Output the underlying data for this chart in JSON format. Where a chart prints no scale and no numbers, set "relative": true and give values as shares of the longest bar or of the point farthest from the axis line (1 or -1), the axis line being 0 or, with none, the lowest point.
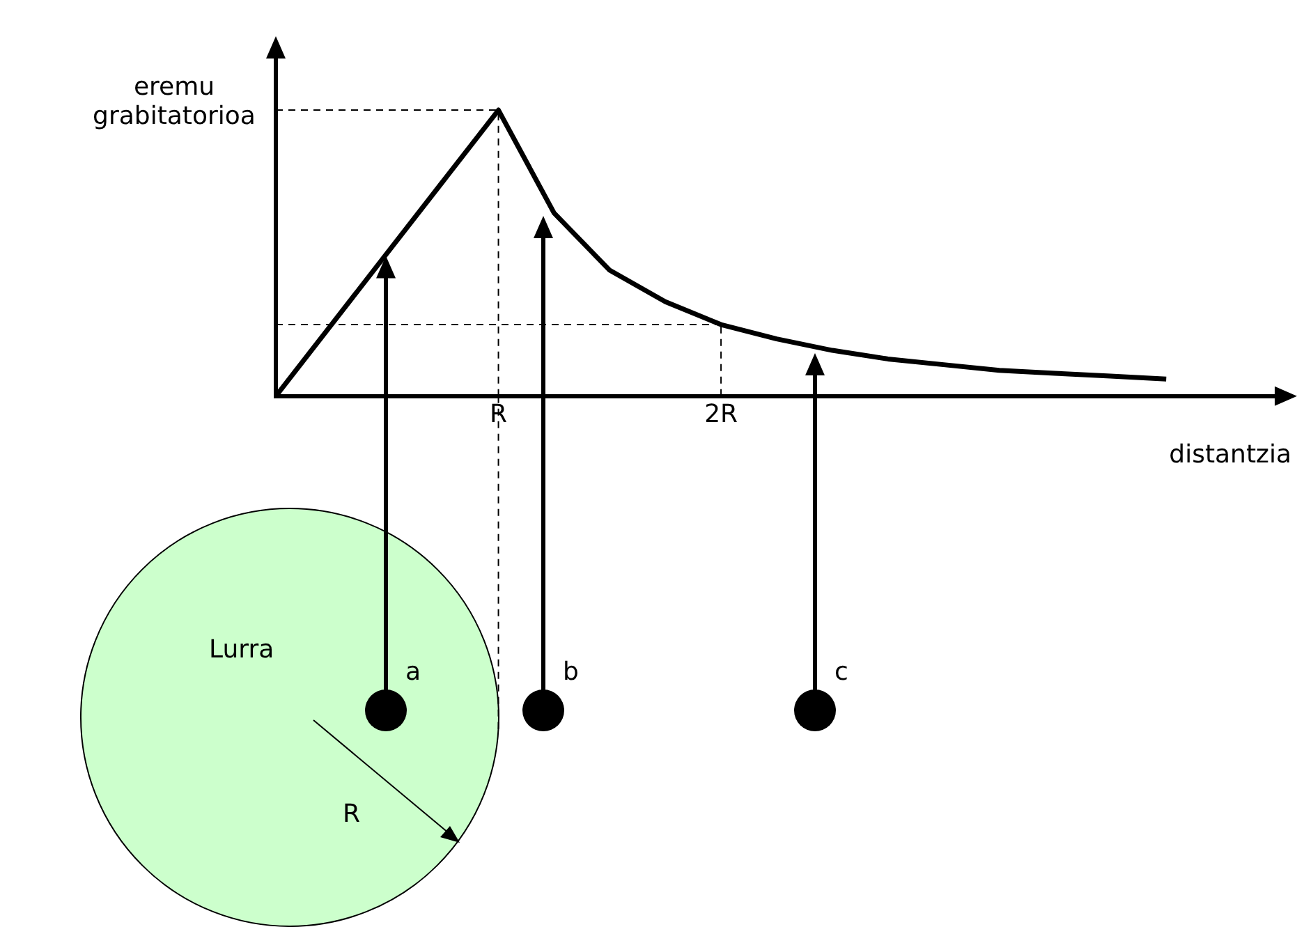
{
  "chart_data": {
    "type": "line",
    "xlabel": "distantzia",
    "ylabel": "eremu grabitatorioa",
    "relative": true,
    "color": "#000000",
    "categories": [
      null,
      null,
      null,
      null,
      "R",
      null,
      null,
      null,
      "2R",
      null,
      null,
      null,
      null,
      null,
      null,
      null,
      null,
      null,
      null
    ],
    "values": [
      0,
      0.25,
      0.5,
      0.75,
      1,
      0.64,
      0.44,
      0.33,
      0.25,
      0.2,
      0.16,
      0.13,
      0.11,
      0.09,
      0.08,
      0.07,
      0.06,
      null,
      null
    ],
    "ref_lines": [
      {
        "axis": "x",
        "value": "R",
        "line_style": "dashed",
        "color": "#000000"
      },
      {
        "axis": "x",
        "value": "2R",
        "line_style": "dashed",
        "color": "#000000"
      },
      {
        "axis": "y",
        "value": 1,
        "line_style": "dashed",
        "color": "#000000"
      },
      {
        "axis": "y",
        "value": 0.25,
        "line_style": "dashed",
        "color": "#000000"
      }
    ],
    "annotations": [
      "Lurra",
      "R",
      "a",
      "b",
      "c"
    ]
  }
}
